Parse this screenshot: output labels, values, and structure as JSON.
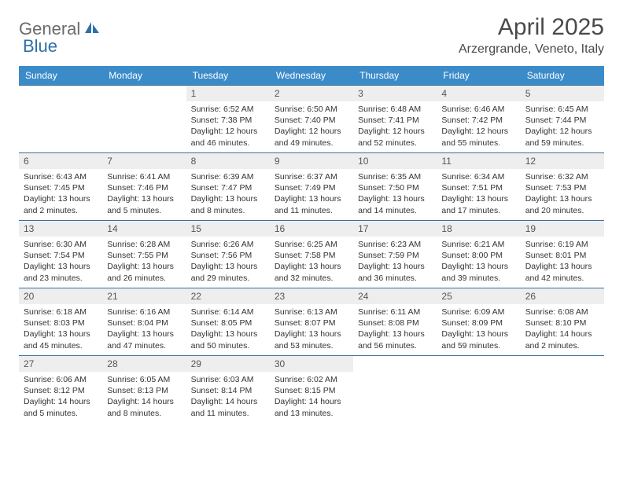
{
  "logo": {
    "part1": "General",
    "part2": "Blue"
  },
  "title": "April 2025",
  "location": "Arzergrande, Veneto, Italy",
  "colors": {
    "header_bg": "#3b8bc9",
    "header_text": "#ffffff",
    "row_border": "#3b6fa0",
    "daynum_bg": "#eeeeee",
    "text": "#333333",
    "logo_gray": "#6b6b6b",
    "logo_blue": "#2f6fa8"
  },
  "weekdays": [
    "Sunday",
    "Monday",
    "Tuesday",
    "Wednesday",
    "Thursday",
    "Friday",
    "Saturday"
  ],
  "weeks": [
    [
      null,
      null,
      {
        "n": "1",
        "sunrise": "Sunrise: 6:52 AM",
        "sunset": "Sunset: 7:38 PM",
        "daylight": "Daylight: 12 hours and 46 minutes."
      },
      {
        "n": "2",
        "sunrise": "Sunrise: 6:50 AM",
        "sunset": "Sunset: 7:40 PM",
        "daylight": "Daylight: 12 hours and 49 minutes."
      },
      {
        "n": "3",
        "sunrise": "Sunrise: 6:48 AM",
        "sunset": "Sunset: 7:41 PM",
        "daylight": "Daylight: 12 hours and 52 minutes."
      },
      {
        "n": "4",
        "sunrise": "Sunrise: 6:46 AM",
        "sunset": "Sunset: 7:42 PM",
        "daylight": "Daylight: 12 hours and 55 minutes."
      },
      {
        "n": "5",
        "sunrise": "Sunrise: 6:45 AM",
        "sunset": "Sunset: 7:44 PM",
        "daylight": "Daylight: 12 hours and 59 minutes."
      }
    ],
    [
      {
        "n": "6",
        "sunrise": "Sunrise: 6:43 AM",
        "sunset": "Sunset: 7:45 PM",
        "daylight": "Daylight: 13 hours and 2 minutes."
      },
      {
        "n": "7",
        "sunrise": "Sunrise: 6:41 AM",
        "sunset": "Sunset: 7:46 PM",
        "daylight": "Daylight: 13 hours and 5 minutes."
      },
      {
        "n": "8",
        "sunrise": "Sunrise: 6:39 AM",
        "sunset": "Sunset: 7:47 PM",
        "daylight": "Daylight: 13 hours and 8 minutes."
      },
      {
        "n": "9",
        "sunrise": "Sunrise: 6:37 AM",
        "sunset": "Sunset: 7:49 PM",
        "daylight": "Daylight: 13 hours and 11 minutes."
      },
      {
        "n": "10",
        "sunrise": "Sunrise: 6:35 AM",
        "sunset": "Sunset: 7:50 PM",
        "daylight": "Daylight: 13 hours and 14 minutes."
      },
      {
        "n": "11",
        "sunrise": "Sunrise: 6:34 AM",
        "sunset": "Sunset: 7:51 PM",
        "daylight": "Daylight: 13 hours and 17 minutes."
      },
      {
        "n": "12",
        "sunrise": "Sunrise: 6:32 AM",
        "sunset": "Sunset: 7:53 PM",
        "daylight": "Daylight: 13 hours and 20 minutes."
      }
    ],
    [
      {
        "n": "13",
        "sunrise": "Sunrise: 6:30 AM",
        "sunset": "Sunset: 7:54 PM",
        "daylight": "Daylight: 13 hours and 23 minutes."
      },
      {
        "n": "14",
        "sunrise": "Sunrise: 6:28 AM",
        "sunset": "Sunset: 7:55 PM",
        "daylight": "Daylight: 13 hours and 26 minutes."
      },
      {
        "n": "15",
        "sunrise": "Sunrise: 6:26 AM",
        "sunset": "Sunset: 7:56 PM",
        "daylight": "Daylight: 13 hours and 29 minutes."
      },
      {
        "n": "16",
        "sunrise": "Sunrise: 6:25 AM",
        "sunset": "Sunset: 7:58 PM",
        "daylight": "Daylight: 13 hours and 32 minutes."
      },
      {
        "n": "17",
        "sunrise": "Sunrise: 6:23 AM",
        "sunset": "Sunset: 7:59 PM",
        "daylight": "Daylight: 13 hours and 36 minutes."
      },
      {
        "n": "18",
        "sunrise": "Sunrise: 6:21 AM",
        "sunset": "Sunset: 8:00 PM",
        "daylight": "Daylight: 13 hours and 39 minutes."
      },
      {
        "n": "19",
        "sunrise": "Sunrise: 6:19 AM",
        "sunset": "Sunset: 8:01 PM",
        "daylight": "Daylight: 13 hours and 42 minutes."
      }
    ],
    [
      {
        "n": "20",
        "sunrise": "Sunrise: 6:18 AM",
        "sunset": "Sunset: 8:03 PM",
        "daylight": "Daylight: 13 hours and 45 minutes."
      },
      {
        "n": "21",
        "sunrise": "Sunrise: 6:16 AM",
        "sunset": "Sunset: 8:04 PM",
        "daylight": "Daylight: 13 hours and 47 minutes."
      },
      {
        "n": "22",
        "sunrise": "Sunrise: 6:14 AM",
        "sunset": "Sunset: 8:05 PM",
        "daylight": "Daylight: 13 hours and 50 minutes."
      },
      {
        "n": "23",
        "sunrise": "Sunrise: 6:13 AM",
        "sunset": "Sunset: 8:07 PM",
        "daylight": "Daylight: 13 hours and 53 minutes."
      },
      {
        "n": "24",
        "sunrise": "Sunrise: 6:11 AM",
        "sunset": "Sunset: 8:08 PM",
        "daylight": "Daylight: 13 hours and 56 minutes."
      },
      {
        "n": "25",
        "sunrise": "Sunrise: 6:09 AM",
        "sunset": "Sunset: 8:09 PM",
        "daylight": "Daylight: 13 hours and 59 minutes."
      },
      {
        "n": "26",
        "sunrise": "Sunrise: 6:08 AM",
        "sunset": "Sunset: 8:10 PM",
        "daylight": "Daylight: 14 hours and 2 minutes."
      }
    ],
    [
      {
        "n": "27",
        "sunrise": "Sunrise: 6:06 AM",
        "sunset": "Sunset: 8:12 PM",
        "daylight": "Daylight: 14 hours and 5 minutes."
      },
      {
        "n": "28",
        "sunrise": "Sunrise: 6:05 AM",
        "sunset": "Sunset: 8:13 PM",
        "daylight": "Daylight: 14 hours and 8 minutes."
      },
      {
        "n": "29",
        "sunrise": "Sunrise: 6:03 AM",
        "sunset": "Sunset: 8:14 PM",
        "daylight": "Daylight: 14 hours and 11 minutes."
      },
      {
        "n": "30",
        "sunrise": "Sunrise: 6:02 AM",
        "sunset": "Sunset: 8:15 PM",
        "daylight": "Daylight: 14 hours and 13 minutes."
      },
      null,
      null,
      null
    ]
  ]
}
